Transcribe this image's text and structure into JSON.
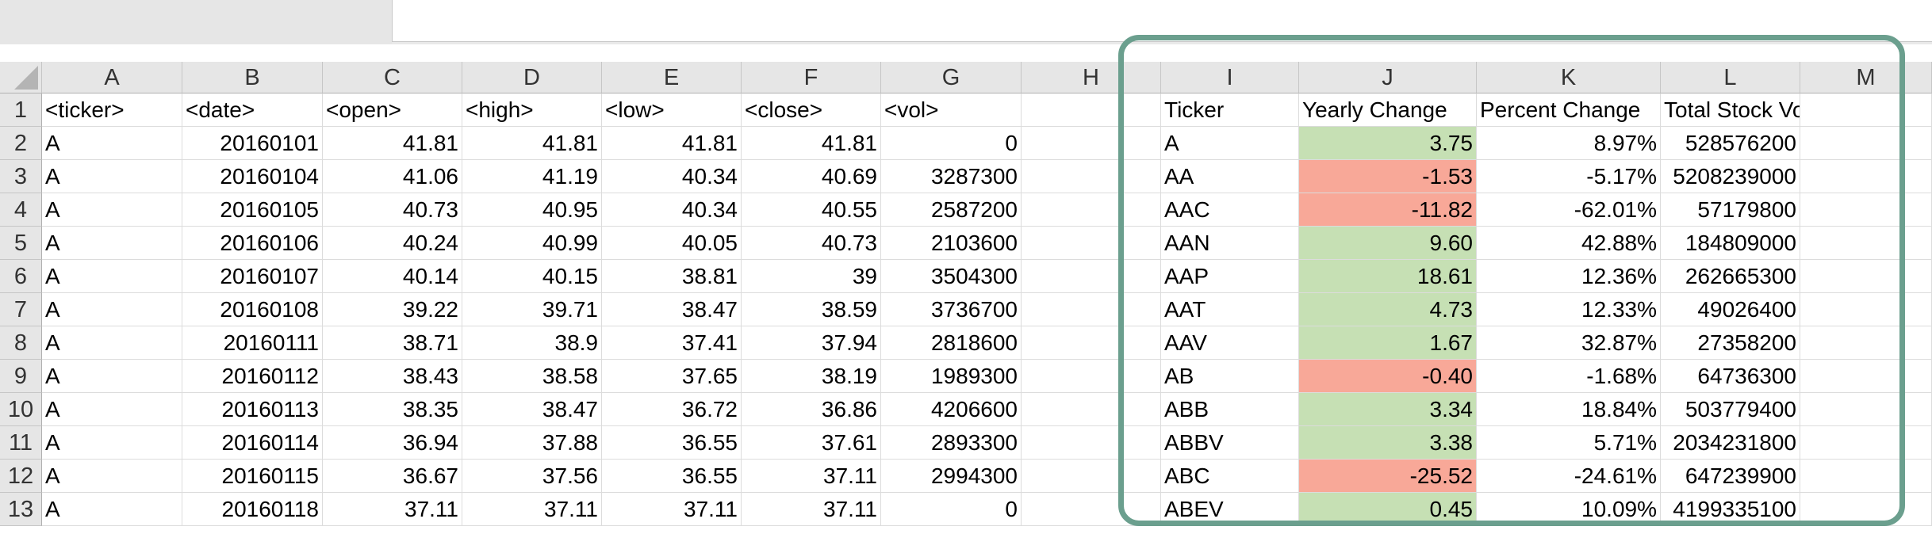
{
  "columns": [
    "A",
    "B",
    "C",
    "D",
    "E",
    "F",
    "G",
    "H",
    "I",
    "J",
    "K",
    "L",
    "M"
  ],
  "rows": [
    {
      "num": "1",
      "a": "<ticker>",
      "b": "<date>",
      "c": "<open>",
      "d": "<high>",
      "e": "<low>",
      "f": "<close>",
      "g": "<vol>",
      "h": "",
      "i": "Ticker",
      "j": "Yearly Change",
      "k": "Percent Change",
      "l": "Total Stock Volume",
      "m": "",
      "jcolor": ""
    },
    {
      "num": "2",
      "a": "A",
      "b": "20160101",
      "c": "41.81",
      "d": "41.81",
      "e": "41.81",
      "f": "41.81",
      "g": "0",
      "h": "",
      "i": "A",
      "j": "3.75",
      "k": "8.97%",
      "l": "528576200",
      "m": "",
      "jcolor": "pos"
    },
    {
      "num": "3",
      "a": "A",
      "b": "20160104",
      "c": "41.06",
      "d": "41.19",
      "e": "40.34",
      "f": "40.69",
      "g": "3287300",
      "h": "",
      "i": "AA",
      "j": "-1.53",
      "k": "-5.17%",
      "l": "5208239000",
      "m": "",
      "jcolor": "neg"
    },
    {
      "num": "4",
      "a": "A",
      "b": "20160105",
      "c": "40.73",
      "d": "40.95",
      "e": "40.34",
      "f": "40.55",
      "g": "2587200",
      "h": "",
      "i": "AAC",
      "j": "-11.82",
      "k": "-62.01%",
      "l": "57179800",
      "m": "",
      "jcolor": "neg"
    },
    {
      "num": "5",
      "a": "A",
      "b": "20160106",
      "c": "40.24",
      "d": "40.99",
      "e": "40.05",
      "f": "40.73",
      "g": "2103600",
      "h": "",
      "i": "AAN",
      "j": "9.60",
      "k": "42.88%",
      "l": "184809000",
      "m": "",
      "jcolor": "pos"
    },
    {
      "num": "6",
      "a": "A",
      "b": "20160107",
      "c": "40.14",
      "d": "40.15",
      "e": "38.81",
      "f": "39",
      "g": "3504300",
      "h": "",
      "i": "AAP",
      "j": "18.61",
      "k": "12.36%",
      "l": "262665300",
      "m": "",
      "jcolor": "pos"
    },
    {
      "num": "7",
      "a": "A",
      "b": "20160108",
      "c": "39.22",
      "d": "39.71",
      "e": "38.47",
      "f": "38.59",
      "g": "3736700",
      "h": "",
      "i": "AAT",
      "j": "4.73",
      "k": "12.33%",
      "l": "49026400",
      "m": "",
      "jcolor": "pos"
    },
    {
      "num": "8",
      "a": "A",
      "b": "20160111",
      "c": "38.71",
      "d": "38.9",
      "e": "37.41",
      "f": "37.94",
      "g": "2818600",
      "h": "",
      "i": "AAV",
      "j": "1.67",
      "k": "32.87%",
      "l": "27358200",
      "m": "",
      "jcolor": "pos"
    },
    {
      "num": "9",
      "a": "A",
      "b": "20160112",
      "c": "38.43",
      "d": "38.58",
      "e": "37.65",
      "f": "38.19",
      "g": "1989300",
      "h": "",
      "i": "AB",
      "j": "-0.40",
      "k": "-1.68%",
      "l": "64736300",
      "m": "",
      "jcolor": "neg"
    },
    {
      "num": "10",
      "a": "A",
      "b": "20160113",
      "c": "38.35",
      "d": "38.47",
      "e": "36.72",
      "f": "36.86",
      "g": "4206600",
      "h": "",
      "i": "ABB",
      "j": "3.34",
      "k": "18.84%",
      "l": "503779400",
      "m": "",
      "jcolor": "pos"
    },
    {
      "num": "11",
      "a": "A",
      "b": "20160114",
      "c": "36.94",
      "d": "37.88",
      "e": "36.55",
      "f": "37.61",
      "g": "2893300",
      "h": "",
      "i": "ABBV",
      "j": "3.38",
      "k": "5.71%",
      "l": "2034231800",
      "m": "",
      "jcolor": "pos"
    },
    {
      "num": "12",
      "a": "A",
      "b": "20160115",
      "c": "36.67",
      "d": "37.56",
      "e": "36.55",
      "f": "37.11",
      "g": "2994300",
      "h": "",
      "i": "ABC",
      "j": "-25.52",
      "k": "-24.61%",
      "l": "647239900",
      "m": "",
      "jcolor": "neg"
    },
    {
      "num": "13",
      "a": "A",
      "b": "20160118",
      "c": "37.11",
      "d": "37.11",
      "e": "37.11",
      "f": "37.11",
      "g": "0",
      "h": "",
      "i": "ABEV",
      "j": "0.45",
      "k": "10.09%",
      "l": "4199335100",
      "m": "",
      "jcolor": "pos"
    }
  ],
  "colors": {
    "positive_fill": "#c6e0b4",
    "negative_fill": "#f8a898",
    "highlight_border": "#6b9f8e",
    "header_fill": "#e6e6e6"
  }
}
